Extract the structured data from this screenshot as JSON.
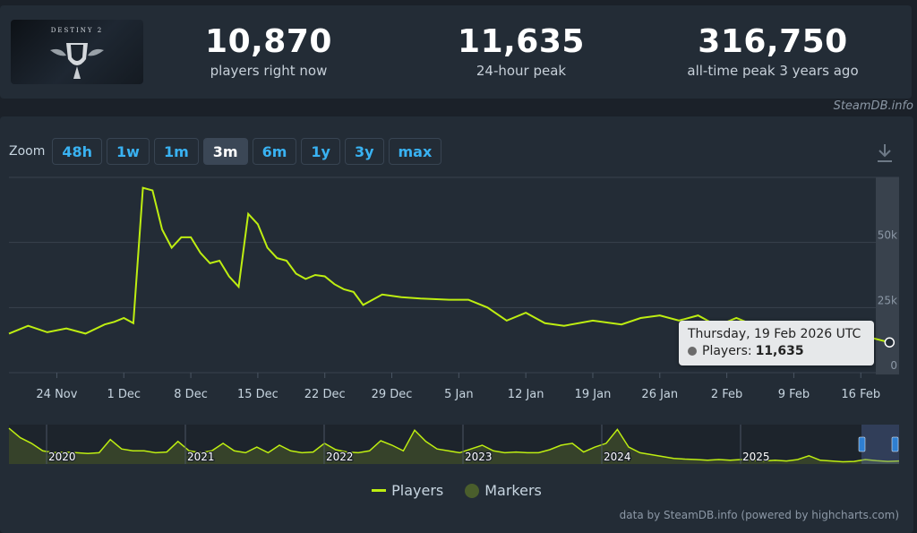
{
  "header": {
    "game_logo_text": "DESTINY 2",
    "stats": [
      {
        "value": "10,870",
        "label": "players right now"
      },
      {
        "value": "11,635",
        "label": "24-hour peak"
      },
      {
        "value": "316,750",
        "label": "all-time peak 3 years ago"
      }
    ],
    "credit": "SteamDB.info"
  },
  "zoom": {
    "label": "Zoom",
    "buttons": [
      "48h",
      "1w",
      "1m",
      "3m",
      "6m",
      "1y",
      "3y",
      "max"
    ],
    "active": "3m"
  },
  "tooltip": {
    "date": "Thursday, 19 Feb 2026 UTC",
    "series": "Players:",
    "value": "11,635"
  },
  "legend": [
    {
      "name": "Players",
      "color": "#beee11"
    },
    {
      "name": "Markers",
      "color": "#4a5e2c"
    }
  ],
  "credit_bottom": "data by SteamDB.info (powered by highcharts.com)",
  "colors": {
    "line": "#beee11",
    "accent": "#39b2f2",
    "navigator_fill": "#3d4a2a"
  },
  "chart_data": [
    {
      "type": "line",
      "title": "",
      "series": [
        {
          "name": "Players"
        }
      ],
      "x_ticks": [
        "24 Nov",
        "1 Dec",
        "8 Dec",
        "15 Dec",
        "22 Dec",
        "29 Dec",
        "5 Jan",
        "12 Jan",
        "19 Jan",
        "26 Jan",
        "2 Feb",
        "9 Feb",
        "16 Feb"
      ],
      "y_ticks": [
        "0",
        "25k",
        "50k"
      ],
      "ylim": [
        0,
        75000
      ],
      "x": [
        "2025-11-19",
        "2025-11-21",
        "2025-11-23",
        "2025-11-25",
        "2025-11-27",
        "2025-11-29",
        "2025-11-30",
        "2025-12-01",
        "2025-12-02",
        "2025-12-03",
        "2025-12-04",
        "2025-12-05",
        "2025-12-06",
        "2025-12-07",
        "2025-12-08",
        "2025-12-09",
        "2025-12-10",
        "2025-12-11",
        "2025-12-12",
        "2025-12-13",
        "2025-12-14",
        "2025-12-15",
        "2025-12-16",
        "2025-12-17",
        "2025-12-18",
        "2025-12-19",
        "2025-12-20",
        "2025-12-21",
        "2025-12-22",
        "2025-12-23",
        "2025-12-24",
        "2025-12-25",
        "2025-12-26",
        "2025-12-28",
        "2025-12-30",
        "2026-01-01",
        "2026-01-04",
        "2026-01-06",
        "2026-01-08",
        "2026-01-10",
        "2026-01-12",
        "2026-01-14",
        "2026-01-16",
        "2026-01-19",
        "2026-01-22",
        "2026-01-24",
        "2026-01-26",
        "2026-01-28",
        "2026-01-30",
        "2026-02-01",
        "2026-02-03",
        "2026-02-05",
        "2026-02-08",
        "2026-02-11",
        "2026-02-14",
        "2026-02-16",
        "2026-02-17",
        "2026-02-19"
      ],
      "values": [
        15000,
        18000,
        15500,
        17000,
        15000,
        18500,
        19500,
        21000,
        19000,
        71000,
        70000,
        55000,
        48000,
        52000,
        52000,
        46000,
        42000,
        43000,
        37000,
        33000,
        61000,
        57000,
        48000,
        44000,
        43000,
        38000,
        36000,
        37500,
        37000,
        34000,
        32000,
        31000,
        26000,
        30000,
        29000,
        28500,
        28000,
        28000,
        25000,
        20000,
        23000,
        19000,
        18000,
        20000,
        18500,
        21000,
        22000,
        20000,
        22000,
        18000,
        21000,
        18000,
        16000,
        15000,
        14000,
        14500,
        13500,
        11635
      ]
    },
    {
      "type": "area",
      "title": "",
      "x_ticks": [
        "2020",
        "2021",
        "2022",
        "2023",
        "2024",
        "2025"
      ]
    }
  ]
}
